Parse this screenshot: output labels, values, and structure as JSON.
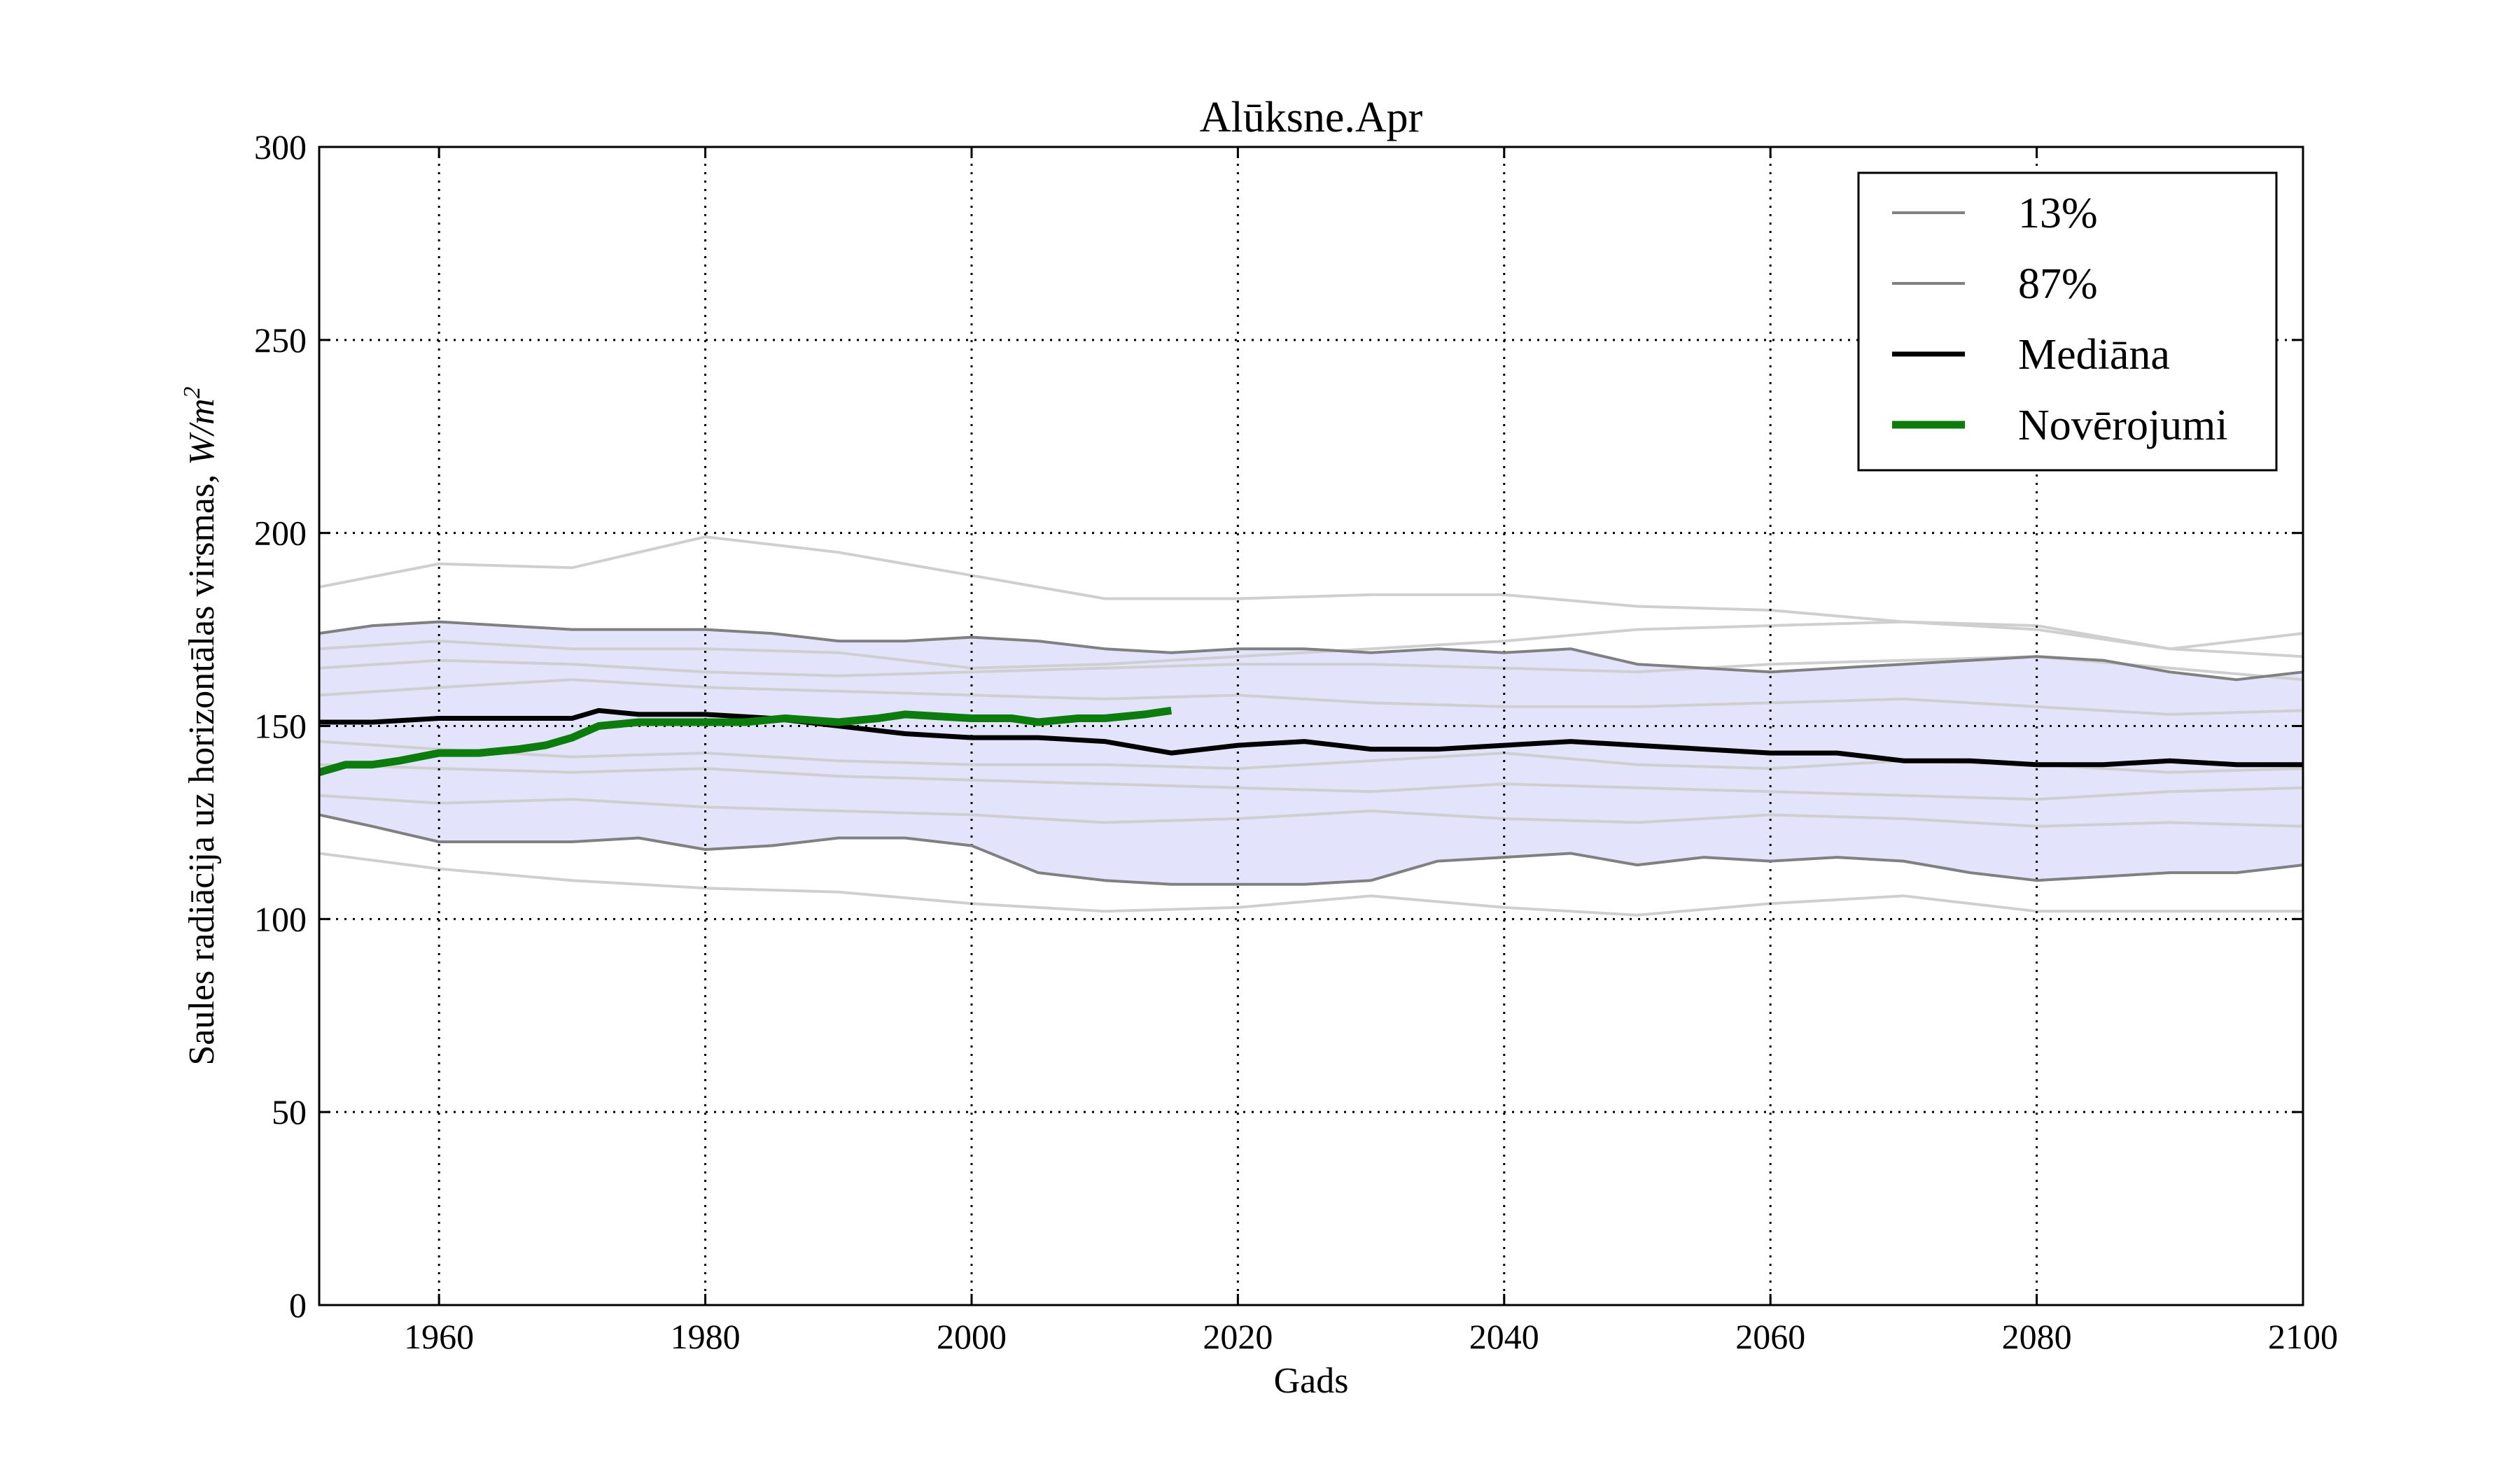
{
  "chart_data": {
    "type": "line",
    "title": "Alūksne.Apr",
    "xlabel": "Gads",
    "ylabel": "Saules radiācija uz horizontālas virsmas, ",
    "ylabel_unit": "W/m",
    "ylabel_unit_exp": "2",
    "xlim": [
      1951,
      2100
    ],
    "ylim": [
      0,
      300
    ],
    "xticks": [
      1960,
      1980,
      2000,
      2020,
      2040,
      2060,
      2080,
      2100
    ],
    "yticks": [
      0,
      50,
      100,
      150,
      200,
      250,
      300
    ],
    "grid": true,
    "legend_position": "top-right",
    "colors": {
      "band_fill": "#e3e3fb",
      "percentile_line": "#808080",
      "member_line": "#cfcfcf",
      "median": "#000000",
      "observations": "#0a7d0a"
    },
    "legend": [
      {
        "label": "13%",
        "color": "#808080",
        "style": "thin"
      },
      {
        "label": "87%",
        "color": "#808080",
        "style": "thin"
      },
      {
        "label": "Mediāna",
        "color": "#000000",
        "style": "medium"
      },
      {
        "label": "Novērojumi",
        "color": "#0a7d0a",
        "style": "thick"
      }
    ],
    "band": {
      "x": [
        1951,
        1955,
        1960,
        1965,
        1970,
        1975,
        1980,
        1985,
        1990,
        1995,
        2000,
        2005,
        2010,
        2015,
        2020,
        2025,
        2030,
        2035,
        2040,
        2045,
        2050,
        2055,
        2060,
        2065,
        2070,
        2075,
        2080,
        2085,
        2090,
        2095,
        2100
      ],
      "upper": [
        174,
        176,
        177,
        176,
        175,
        175,
        175,
        174,
        172,
        172,
        173,
        172,
        170,
        169,
        170,
        170,
        169,
        170,
        169,
        170,
        166,
        165,
        164,
        165,
        166,
        167,
        168,
        167,
        164,
        162,
        164
      ],
      "lower": [
        127,
        124,
        120,
        120,
        120,
        121,
        118,
        119,
        121,
        121,
        119,
        112,
        110,
        109,
        109,
        109,
        110,
        115,
        116,
        117,
        114,
        116,
        115,
        116,
        115,
        112,
        110,
        111,
        112,
        112,
        114
      ]
    },
    "series": [
      {
        "name": "13%",
        "x": [
          1951,
          1955,
          1960,
          1965,
          1970,
          1975,
          1980,
          1985,
          1990,
          1995,
          2000,
          2005,
          2010,
          2015,
          2020,
          2025,
          2030,
          2035,
          2040,
          2045,
          2050,
          2055,
          2060,
          2065,
          2070,
          2075,
          2080,
          2085,
          2090,
          2095,
          2100
        ],
        "values": [
          127,
          124,
          120,
          120,
          120,
          121,
          118,
          119,
          121,
          121,
          119,
          112,
          110,
          109,
          109,
          109,
          110,
          115,
          116,
          117,
          114,
          116,
          115,
          116,
          115,
          112,
          110,
          111,
          112,
          112,
          114
        ]
      },
      {
        "name": "87%",
        "x": [
          1951,
          1955,
          1960,
          1965,
          1970,
          1975,
          1980,
          1985,
          1990,
          1995,
          2000,
          2005,
          2010,
          2015,
          2020,
          2025,
          2030,
          2035,
          2040,
          2045,
          2050,
          2055,
          2060,
          2065,
          2070,
          2075,
          2080,
          2085,
          2090,
          2095,
          2100
        ],
        "values": [
          174,
          176,
          177,
          176,
          175,
          175,
          175,
          174,
          172,
          172,
          173,
          172,
          170,
          169,
          170,
          170,
          169,
          170,
          169,
          170,
          166,
          165,
          164,
          165,
          166,
          167,
          168,
          167,
          164,
          162,
          164
        ]
      },
      {
        "name": "Mediāna",
        "x": [
          1951,
          1955,
          1960,
          1965,
          1970,
          1972,
          1975,
          1980,
          1985,
          1990,
          1995,
          2000,
          2005,
          2010,
          2015,
          2020,
          2025,
          2030,
          2035,
          2040,
          2045,
          2050,
          2055,
          2060,
          2065,
          2070,
          2075,
          2080,
          2085,
          2090,
          2095,
          2100
        ],
        "values": [
          151,
          151,
          152,
          152,
          152,
          154,
          153,
          153,
          152,
          150,
          148,
          147,
          147,
          146,
          143,
          145,
          146,
          144,
          144,
          145,
          146,
          145,
          144,
          143,
          143,
          141,
          141,
          140,
          140,
          141,
          140,
          140
        ]
      },
      {
        "name": "Novērojumi",
        "x": [
          1951,
          1953,
          1955,
          1957,
          1960,
          1963,
          1966,
          1968,
          1970,
          1972,
          1975,
          1978,
          1980,
          1983,
          1986,
          1990,
          1993,
          1995,
          2000,
          2003,
          2005,
          2008,
          2010,
          2013,
          2015
        ],
        "values": [
          138,
          140,
          140,
          141,
          143,
          143,
          144,
          145,
          147,
          150,
          151,
          151,
          151,
          151,
          152,
          151,
          152,
          153,
          152,
          152,
          151,
          152,
          152,
          153,
          154
        ]
      }
    ],
    "members": [
      {
        "x": [
          1951,
          1960,
          1970,
          1980,
          1985,
          1990,
          2000,
          2010,
          2020,
          2030,
          2040,
          2050,
          2060,
          2070,
          2080,
          2090,
          2100
        ],
        "values": [
          186,
          192,
          191,
          199,
          197,
          195,
          189,
          183,
          183,
          184,
          184,
          181,
          180,
          177,
          176,
          170,
          174
        ]
      },
      {
        "x": [
          1951,
          1960,
          1970,
          1980,
          1990,
          2000,
          2010,
          2020,
          2030,
          2040,
          2050,
          2060,
          2070,
          2080,
          2090,
          2100
        ],
        "values": [
          170,
          172,
          170,
          170,
          169,
          165,
          166,
          168,
          170,
          172,
          175,
          176,
          177,
          175,
          170,
          168
        ]
      },
      {
        "x": [
          1951,
          1960,
          1970,
          1980,
          1990,
          2000,
          2010,
          2020,
          2030,
          2040,
          2050,
          2060,
          2070,
          2080,
          2090,
          2100
        ],
        "values": [
          165,
          167,
          166,
          164,
          163,
          164,
          165,
          166,
          166,
          165,
          164,
          166,
          167,
          168,
          165,
          162
        ]
      },
      {
        "x": [
          1951,
          1960,
          1970,
          1980,
          1990,
          2000,
          2010,
          2020,
          2030,
          2040,
          2050,
          2060,
          2070,
          2080,
          2090,
          2100
        ],
        "values": [
          158,
          160,
          162,
          160,
          159,
          158,
          157,
          158,
          156,
          155,
          155,
          156,
          157,
          155,
          153,
          154
        ]
      },
      {
        "x": [
          1951,
          1960,
          1970,
          1980,
          1990,
          2000,
          2010,
          2020,
          2030,
          2040,
          2050,
          2060,
          2070,
          2080,
          2090,
          2100
        ],
        "values": [
          146,
          144,
          142,
          143,
          141,
          140,
          140,
          139,
          141,
          143,
          140,
          139,
          141,
          140,
          138,
          139
        ]
      },
      {
        "x": [
          1951,
          1960,
          1970,
          1980,
          1990,
          2000,
          2010,
          2020,
          2030,
          2040,
          2050,
          2060,
          2070,
          2080,
          2090,
          2100
        ],
        "values": [
          140,
          139,
          138,
          139,
          137,
          136,
          135,
          134,
          133,
          135,
          134,
          133,
          132,
          131,
          133,
          134
        ]
      },
      {
        "x": [
          1951,
          1960,
          1970,
          1980,
          1990,
          2000,
          2010,
          2020,
          2030,
          2040,
          2050,
          2060,
          2070,
          2080,
          2090,
          2100
        ],
        "values": [
          132,
          130,
          131,
          129,
          128,
          127,
          125,
          126,
          128,
          126,
          125,
          127,
          126,
          124,
          125,
          124
        ]
      },
      {
        "x": [
          1951,
          1960,
          1970,
          1980,
          1990,
          2000,
          2010,
          2020,
          2030,
          2040,
          2050,
          2060,
          2070,
          2080,
          2090,
          2100
        ],
        "values": [
          117,
          113,
          110,
          108,
          107,
          104,
          102,
          103,
          106,
          103,
          101,
          104,
          106,
          102,
          102,
          102
        ]
      }
    ]
  }
}
